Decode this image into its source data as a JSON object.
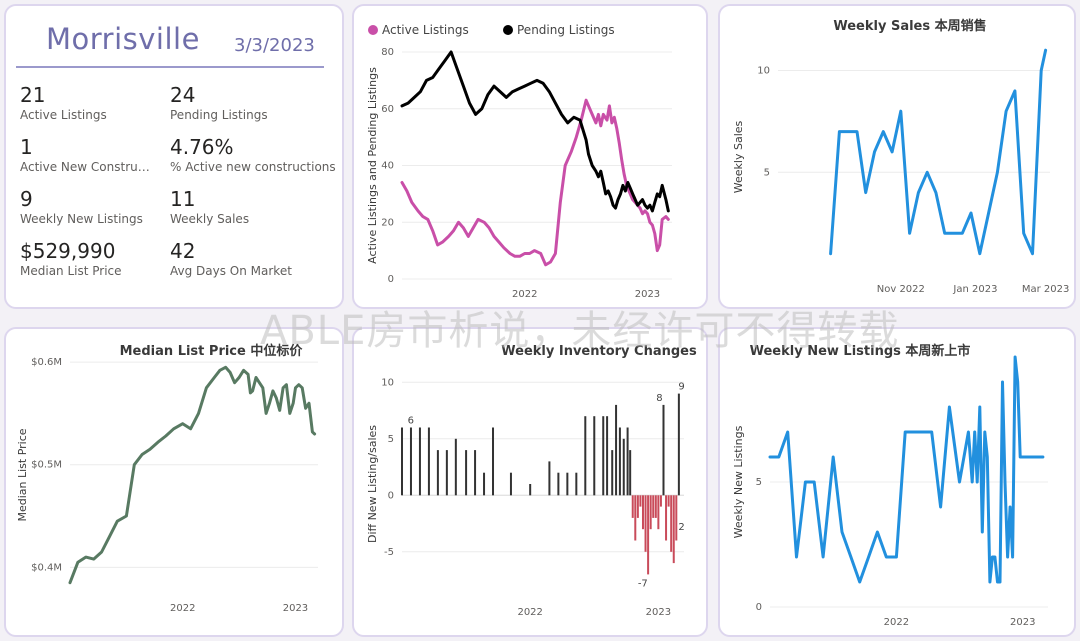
{
  "summary": {
    "city": "Morrisville",
    "date": "3/3/2023",
    "kpis": [
      {
        "value": "21",
        "label": "Active Listings"
      },
      {
        "value": "24",
        "label": "Pending Listings"
      },
      {
        "value": "1",
        "label": "Active New Constructi..."
      },
      {
        "value": "4.76%",
        "label": "% Active new constructions"
      },
      {
        "value": "9",
        "label": "Weekly New Listings"
      },
      {
        "value": "11",
        "label": "Weekly Sales"
      },
      {
        "value": "$529,990",
        "label": "Median List Price"
      },
      {
        "value": "42",
        "label": "Avg Days On Market"
      }
    ]
  },
  "watermark": "ABLE房市析说，未经许可不得转载",
  "colors": {
    "active": "#c94fa8",
    "pending": "#000000",
    "sales": "#2290de",
    "median": "#587a62",
    "neg": "#c94b5a",
    "pos": "#333333"
  },
  "chart_data": [
    {
      "id": "listings",
      "type": "line",
      "title": "",
      "ylabel": "Active Listings and Pending Listings",
      "ylim": [
        0,
        80
      ],
      "yticks": [
        0,
        20,
        40,
        60,
        80
      ],
      "xlim": [
        2021.0,
        2023.2
      ],
      "xticks": [
        {
          "v": 2022.0,
          "label": "2022"
        },
        {
          "v": 2023.0,
          "label": "2023"
        }
      ],
      "series": [
        {
          "name": "Active Listings",
          "color": "#c94fa8",
          "x": [
            2021.0,
            2021.04,
            2021.08,
            2021.13,
            2021.17,
            2021.21,
            2021.25,
            2021.29,
            2021.33,
            2021.38,
            2021.42,
            2021.46,
            2021.5,
            2021.54,
            2021.58,
            2021.62,
            2021.67,
            2021.71,
            2021.75,
            2021.79,
            2021.83,
            2021.88,
            2021.92,
            2021.96,
            2022.0,
            2022.04,
            2022.08,
            2022.13,
            2022.17,
            2022.21,
            2022.25,
            2022.29,
            2022.33,
            2022.38,
            2022.42,
            2022.46,
            2022.5,
            2022.54,
            2022.58,
            2022.6,
            2022.62,
            2022.64,
            2022.67,
            2022.69,
            2022.71,
            2022.73,
            2022.75,
            2022.77,
            2022.79,
            2022.81,
            2022.83,
            2022.85,
            2022.88,
            2022.9,
            2022.92,
            2022.94,
            2022.96,
            2022.98,
            2023.0,
            2023.02,
            2023.04,
            2023.06,
            2023.08,
            2023.1,
            2023.12,
            2023.15,
            2023.17
          ],
          "y": [
            34,
            31,
            27,
            24,
            22,
            21,
            17,
            12,
            13,
            15,
            17,
            20,
            18,
            15,
            18,
            21,
            20,
            18,
            15,
            13,
            11,
            9,
            8,
            8,
            9,
            9,
            10,
            9,
            5,
            6,
            9,
            27,
            40,
            45,
            50,
            56,
            63,
            59,
            55,
            58,
            54,
            58,
            56,
            61,
            55,
            57,
            53,
            48,
            42,
            37,
            33,
            31,
            28,
            27,
            26,
            25,
            23,
            24,
            23,
            20,
            19,
            16,
            10,
            12,
            21,
            22,
            21
          ]
        },
        {
          "name": "Pending Listings",
          "color": "#000000",
          "x": [
            2021.0,
            2021.05,
            2021.1,
            2021.15,
            2021.2,
            2021.25,
            2021.3,
            2021.35,
            2021.4,
            2021.45,
            2021.5,
            2021.55,
            2021.6,
            2021.65,
            2021.7,
            2021.75,
            2021.8,
            2021.85,
            2021.9,
            2021.95,
            2022.0,
            2022.05,
            2022.1,
            2022.15,
            2022.2,
            2022.25,
            2022.3,
            2022.35,
            2022.4,
            2022.45,
            2022.5,
            2022.52,
            2022.55,
            2022.58,
            2022.6,
            2022.62,
            2022.64,
            2022.66,
            2022.68,
            2022.7,
            2022.72,
            2022.74,
            2022.76,
            2022.78,
            2022.8,
            2022.82,
            2022.84,
            2022.86,
            2022.88,
            2022.9,
            2022.92,
            2022.94,
            2022.96,
            2022.98,
            2023.0,
            2023.02,
            2023.04,
            2023.06,
            2023.08,
            2023.1,
            2023.12,
            2023.15,
            2023.17
          ],
          "y": [
            61,
            62,
            64,
            66,
            70,
            71,
            74,
            77,
            80,
            74,
            68,
            62,
            58,
            60,
            65,
            68,
            66,
            64,
            66,
            67,
            68,
            69,
            70,
            69,
            66,
            62,
            58,
            55,
            57,
            56,
            49,
            44,
            40,
            38,
            36,
            38,
            34,
            30,
            31,
            29,
            26,
            25,
            28,
            30,
            33,
            31,
            34,
            32,
            30,
            28,
            26,
            27,
            28,
            26,
            25,
            26,
            24,
            27,
            30,
            29,
            33,
            28,
            24
          ]
        }
      ]
    },
    {
      "id": "weekly_sales",
      "type": "line",
      "title": "Weekly Sales 本周销售",
      "ylabel": "Weekly Sales",
      "ylim": [
        0,
        11.5
      ],
      "yticks": [
        5,
        10
      ],
      "xlim": [
        2022.55,
        2023.17
      ],
      "xticks": [
        {
          "v": 2022.83,
          "label": "Nov 2022"
        },
        {
          "v": 2023.0,
          "label": "Jan 2023"
        },
        {
          "v": 2023.16,
          "label": "Mar 2023"
        }
      ],
      "series": [
        {
          "name": "",
          "color": "#2290de",
          "x": [
            2022.67,
            2022.69,
            2022.71,
            2022.73,
            2022.75,
            2022.77,
            2022.79,
            2022.81,
            2022.83,
            2022.85,
            2022.87,
            2022.89,
            2022.91,
            2022.93,
            2022.95,
            2022.97,
            2022.99,
            2023.01,
            2023.03,
            2023.05,
            2023.07,
            2023.09,
            2023.11,
            2023.13,
            2023.15,
            2023.16
          ],
          "y": [
            1,
            7,
            7,
            7,
            4,
            6,
            7,
            6,
            8,
            2,
            4,
            5,
            4,
            2,
            2,
            2,
            3,
            1,
            3,
            5,
            8,
            9,
            2,
            1,
            10,
            11
          ]
        }
      ]
    },
    {
      "id": "median_price",
      "type": "line",
      "title": "Median List Price  中位标价",
      "ylabel": "Median List Price",
      "ylim": [
        0.375,
        0.605
      ],
      "yticks": [
        {
          "v": 0.4,
          "label": "$0.4M"
        },
        {
          "v": 0.5,
          "label": "$0.5M"
        },
        {
          "v": 0.6,
          "label": "$0.6M"
        }
      ],
      "xlim": [
        2021.0,
        2023.2
      ],
      "xticks": [
        {
          "v": 2022.0,
          "label": "2022"
        },
        {
          "v": 2023.0,
          "label": "2023"
        }
      ],
      "series": [
        {
          "name": "",
          "color": "#587a62",
          "x": [
            2021.0,
            2021.07,
            2021.14,
            2021.21,
            2021.28,
            2021.35,
            2021.42,
            2021.5,
            2021.57,
            2021.64,
            2021.71,
            2021.78,
            2021.85,
            2021.92,
            2022.0,
            2022.07,
            2022.14,
            2022.21,
            2022.28,
            2022.33,
            2022.38,
            2022.42,
            2022.46,
            2022.5,
            2022.54,
            2022.58,
            2022.6,
            2022.62,
            2022.65,
            2022.68,
            2022.71,
            2022.74,
            2022.77,
            2022.8,
            2022.83,
            2022.86,
            2022.89,
            2022.92,
            2022.95,
            2022.98,
            2023.0,
            2023.03,
            2023.06,
            2023.09,
            2023.12,
            2023.15,
            2023.17
          ],
          "y": [
            0.385,
            0.405,
            0.41,
            0.408,
            0.415,
            0.43,
            0.445,
            0.45,
            0.5,
            0.51,
            0.515,
            0.522,
            0.528,
            0.535,
            0.54,
            0.535,
            0.55,
            0.575,
            0.585,
            0.592,
            0.595,
            0.59,
            0.58,
            0.585,
            0.592,
            0.588,
            0.57,
            0.572,
            0.585,
            0.58,
            0.575,
            0.55,
            0.56,
            0.572,
            0.565,
            0.553,
            0.575,
            0.578,
            0.55,
            0.56,
            0.575,
            0.578,
            0.575,
            0.555,
            0.56,
            0.532,
            0.53
          ]
        }
      ]
    },
    {
      "id": "inventory_changes",
      "type": "bar",
      "title": "Weekly Inventory Changes",
      "ylabel": "Diff New Listing/sales",
      "ylim": [
        -9,
        11
      ],
      "yticks": [
        -5,
        0,
        5,
        10
      ],
      "xlim": [
        2021.0,
        2023.2
      ],
      "xticks": [
        {
          "v": 2022.0,
          "label": "2022"
        },
        {
          "v": 2023.0,
          "label": "2023"
        }
      ],
      "data_labels": [
        {
          "x": 2021.1,
          "y": 6,
          "label": "6"
        },
        {
          "x": 2022.91,
          "y": -7,
          "label": "-7"
        },
        {
          "x": 2023.04,
          "y": 8,
          "label": "8"
        },
        {
          "x": 2023.15,
          "y": 9,
          "label": "9"
        },
        {
          "x": 2023.15,
          "y": -2,
          "label": "2"
        }
      ],
      "x": [
        2021.0,
        2021.07,
        2021.14,
        2021.21,
        2021.28,
        2021.35,
        2021.42,
        2021.5,
        2021.57,
        2021.64,
        2021.71,
        2021.85,
        2022.0,
        2022.15,
        2022.22,
        2022.29,
        2022.36,
        2022.43,
        2022.5,
        2022.57,
        2022.6,
        2022.64,
        2022.67,
        2022.7,
        2022.73,
        2022.76,
        2022.78,
        2022.8,
        2022.82,
        2022.84,
        2022.86,
        2022.88,
        2022.9,
        2022.92,
        2022.94,
        2022.96,
        2022.98,
        2023.0,
        2023.02,
        2023.04,
        2023.06,
        2023.08,
        2023.1,
        2023.12,
        2023.14,
        2023.16
      ],
      "values": [
        6,
        6,
        6,
        6,
        4,
        4,
        5,
        4,
        4,
        2,
        6,
        2,
        1,
        3,
        2,
        2,
        2,
        7,
        7,
        7,
        7,
        4,
        8,
        6,
        5,
        6,
        4,
        -2,
        -4,
        -2,
        -1,
        -3,
        -5,
        -7,
        -3,
        -2,
        -2,
        -3,
        -1,
        8,
        -4,
        -1,
        -5,
        -6,
        -4,
        9
      ]
    },
    {
      "id": "weekly_new_listings",
      "type": "line",
      "title": "Weekly New Listings  本周新上市",
      "ylabel": "Weekly New Listings",
      "ylim": [
        0,
        10
      ],
      "yticks": [
        0,
        5
      ],
      "xlim": [
        2021.0,
        2023.2
      ],
      "xticks": [
        {
          "v": 2022.0,
          "label": "2022"
        },
        {
          "v": 2023.0,
          "label": "2023"
        }
      ],
      "series": [
        {
          "name": "",
          "color": "#2290de",
          "x": [
            2021.0,
            2021.07,
            2021.14,
            2021.21,
            2021.28,
            2021.35,
            2021.42,
            2021.5,
            2021.57,
            2021.64,
            2021.71,
            2021.78,
            2021.85,
            2021.92,
            2022.0,
            2022.07,
            2022.14,
            2022.21,
            2022.28,
            2022.35,
            2022.42,
            2022.5,
            2022.57,
            2022.6,
            2022.62,
            2022.64,
            2022.66,
            2022.68,
            2022.7,
            2022.72,
            2022.74,
            2022.76,
            2022.78,
            2022.8,
            2022.82,
            2022.84,
            2022.86,
            2022.88,
            2022.9,
            2022.92,
            2022.94,
            2022.96,
            2022.98,
            2023.0,
            2023.02,
            2023.04,
            2023.06,
            2023.08,
            2023.1,
            2023.12,
            2023.14,
            2023.16
          ],
          "y": [
            6,
            6,
            7,
            2,
            5,
            5,
            2,
            6,
            3,
            2,
            1,
            2,
            3,
            2,
            2,
            7,
            7,
            7,
            7,
            4,
            8,
            5,
            7,
            5,
            7,
            5,
            8,
            3,
            7,
            6,
            1,
            2,
            2,
            1,
            1,
            9,
            5,
            2,
            4,
            2,
            10,
            9,
            6,
            6,
            6,
            6,
            6,
            6,
            6,
            6,
            6,
            6
          ]
        }
      ]
    }
  ]
}
